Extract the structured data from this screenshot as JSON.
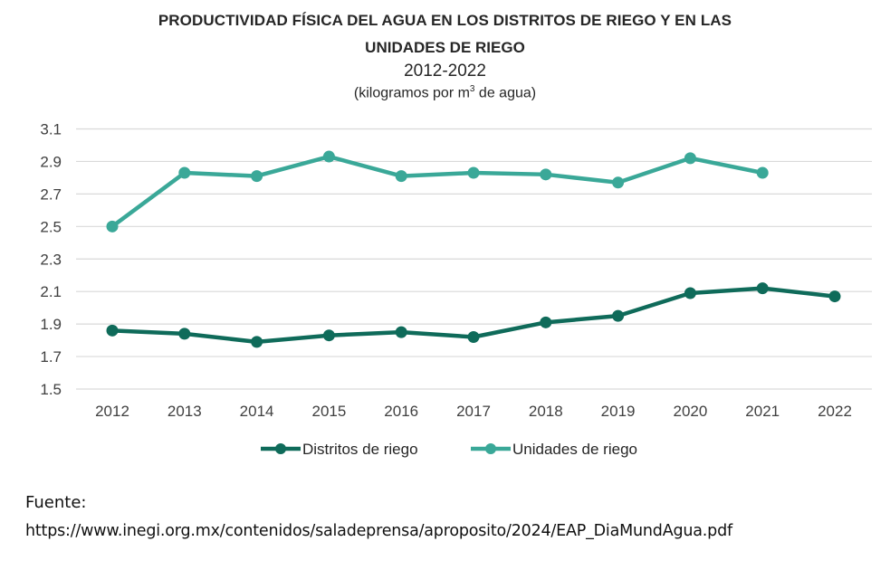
{
  "chart_data": {
    "type": "line",
    "title": "PRODUCTIVIDAD FÍSICA DEL AGUA EN LOS DISTRITOS DE RIEGO Y EN LAS UNIDADES DE RIEGO",
    "title_line1": "PRODUCTIVIDAD FÍSICA DEL AGUA EN LOS DISTRITOS DE RIEGO Y EN LAS",
    "title_line2": "UNIDADES DE RIEGO",
    "subtitle": "2012-2022",
    "units_prefix": "(kilogramos por m",
    "units_sup": "3",
    "units_suffix": " de agua)",
    "xlabel": "",
    "ylabel": "",
    "x": [
      "2012",
      "2013",
      "2014",
      "2015",
      "2016",
      "2017",
      "2018",
      "2019",
      "2020",
      "2021",
      "2022"
    ],
    "ylim": [
      1.5,
      3.1
    ],
    "yticks": [
      "3.1",
      "2.9",
      "2.7",
      "2.5",
      "2.3",
      "2.1",
      "1.9",
      "1.7",
      "1.5"
    ],
    "grid": true,
    "legend_position": "bottom-center",
    "series": [
      {
        "name": "Distritos de riego",
        "color": "#0f6b5a",
        "values": [
          1.86,
          1.84,
          1.79,
          1.83,
          1.85,
          1.82,
          1.91,
          1.95,
          2.09,
          2.12,
          2.07
        ]
      },
      {
        "name": "Unidades de riego",
        "color": "#3aa898",
        "values": [
          2.5,
          2.83,
          2.81,
          2.93,
          2.81,
          2.83,
          2.82,
          2.77,
          2.92,
          2.83,
          null
        ]
      }
    ]
  },
  "source": {
    "label": "Fuente:",
    "url": "https://www.inegi.org.mx/contenidos/saladeprensa/aproposito/2024/EAP_DiaMundAgua.pdf"
  }
}
